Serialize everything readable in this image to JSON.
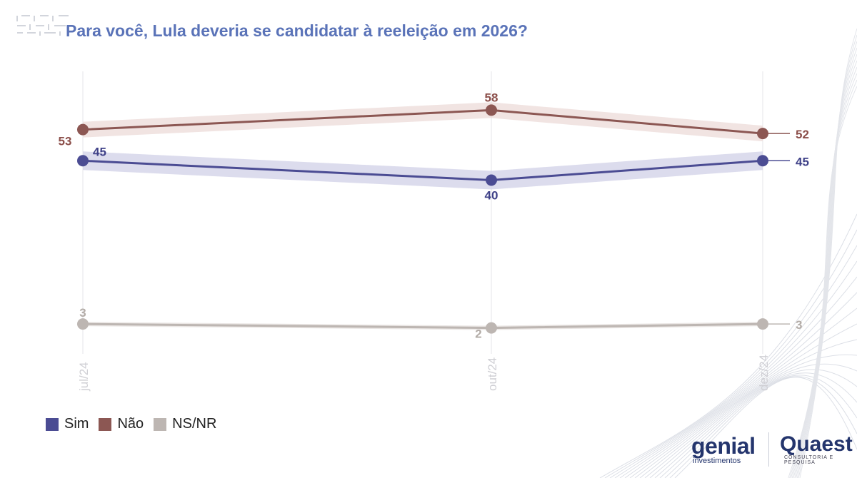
{
  "title": "Para você, Lula deveria se candidatar à reeleição em 2026?",
  "chart_data": {
    "type": "line",
    "title": "Para você, Lula deveria se candidatar à reeleição em 2026?",
    "categories": [
      "jul/24",
      "out/24",
      "dez/24"
    ],
    "series": [
      {
        "name": "Sim",
        "values": [
          45,
          40,
          45
        ],
        "color": "#4b4c93",
        "band_color": "#d6d6ea",
        "label_color": "#3f4188"
      },
      {
        "name": "Não",
        "values": [
          53,
          58,
          52
        ],
        "color": "#8c5753",
        "band_color": "#eedfdd",
        "label_color": "#8c4f4a"
      },
      {
        "name": "NS/NR",
        "values": [
          3,
          2,
          3
        ],
        "color": "#bdb6b2",
        "band_color": "#e6e2df",
        "label_color": "#b3aca7"
      }
    ],
    "ylim": [
      0,
      60
    ],
    "grid": "vertical",
    "legend_position": "bottom-left"
  },
  "legend": [
    {
      "label": "Sim",
      "color": "#4b4c93"
    },
    {
      "label": "Não",
      "color": "#8c5753"
    },
    {
      "label": "NS/NR",
      "color": "#bdb6b2"
    }
  ],
  "brands": {
    "genial_name": "genial",
    "genial_sub": "investimentos",
    "quaest_name": "Quaest",
    "quaest_sub": "CONSULTORIA E PESQUISA"
  }
}
